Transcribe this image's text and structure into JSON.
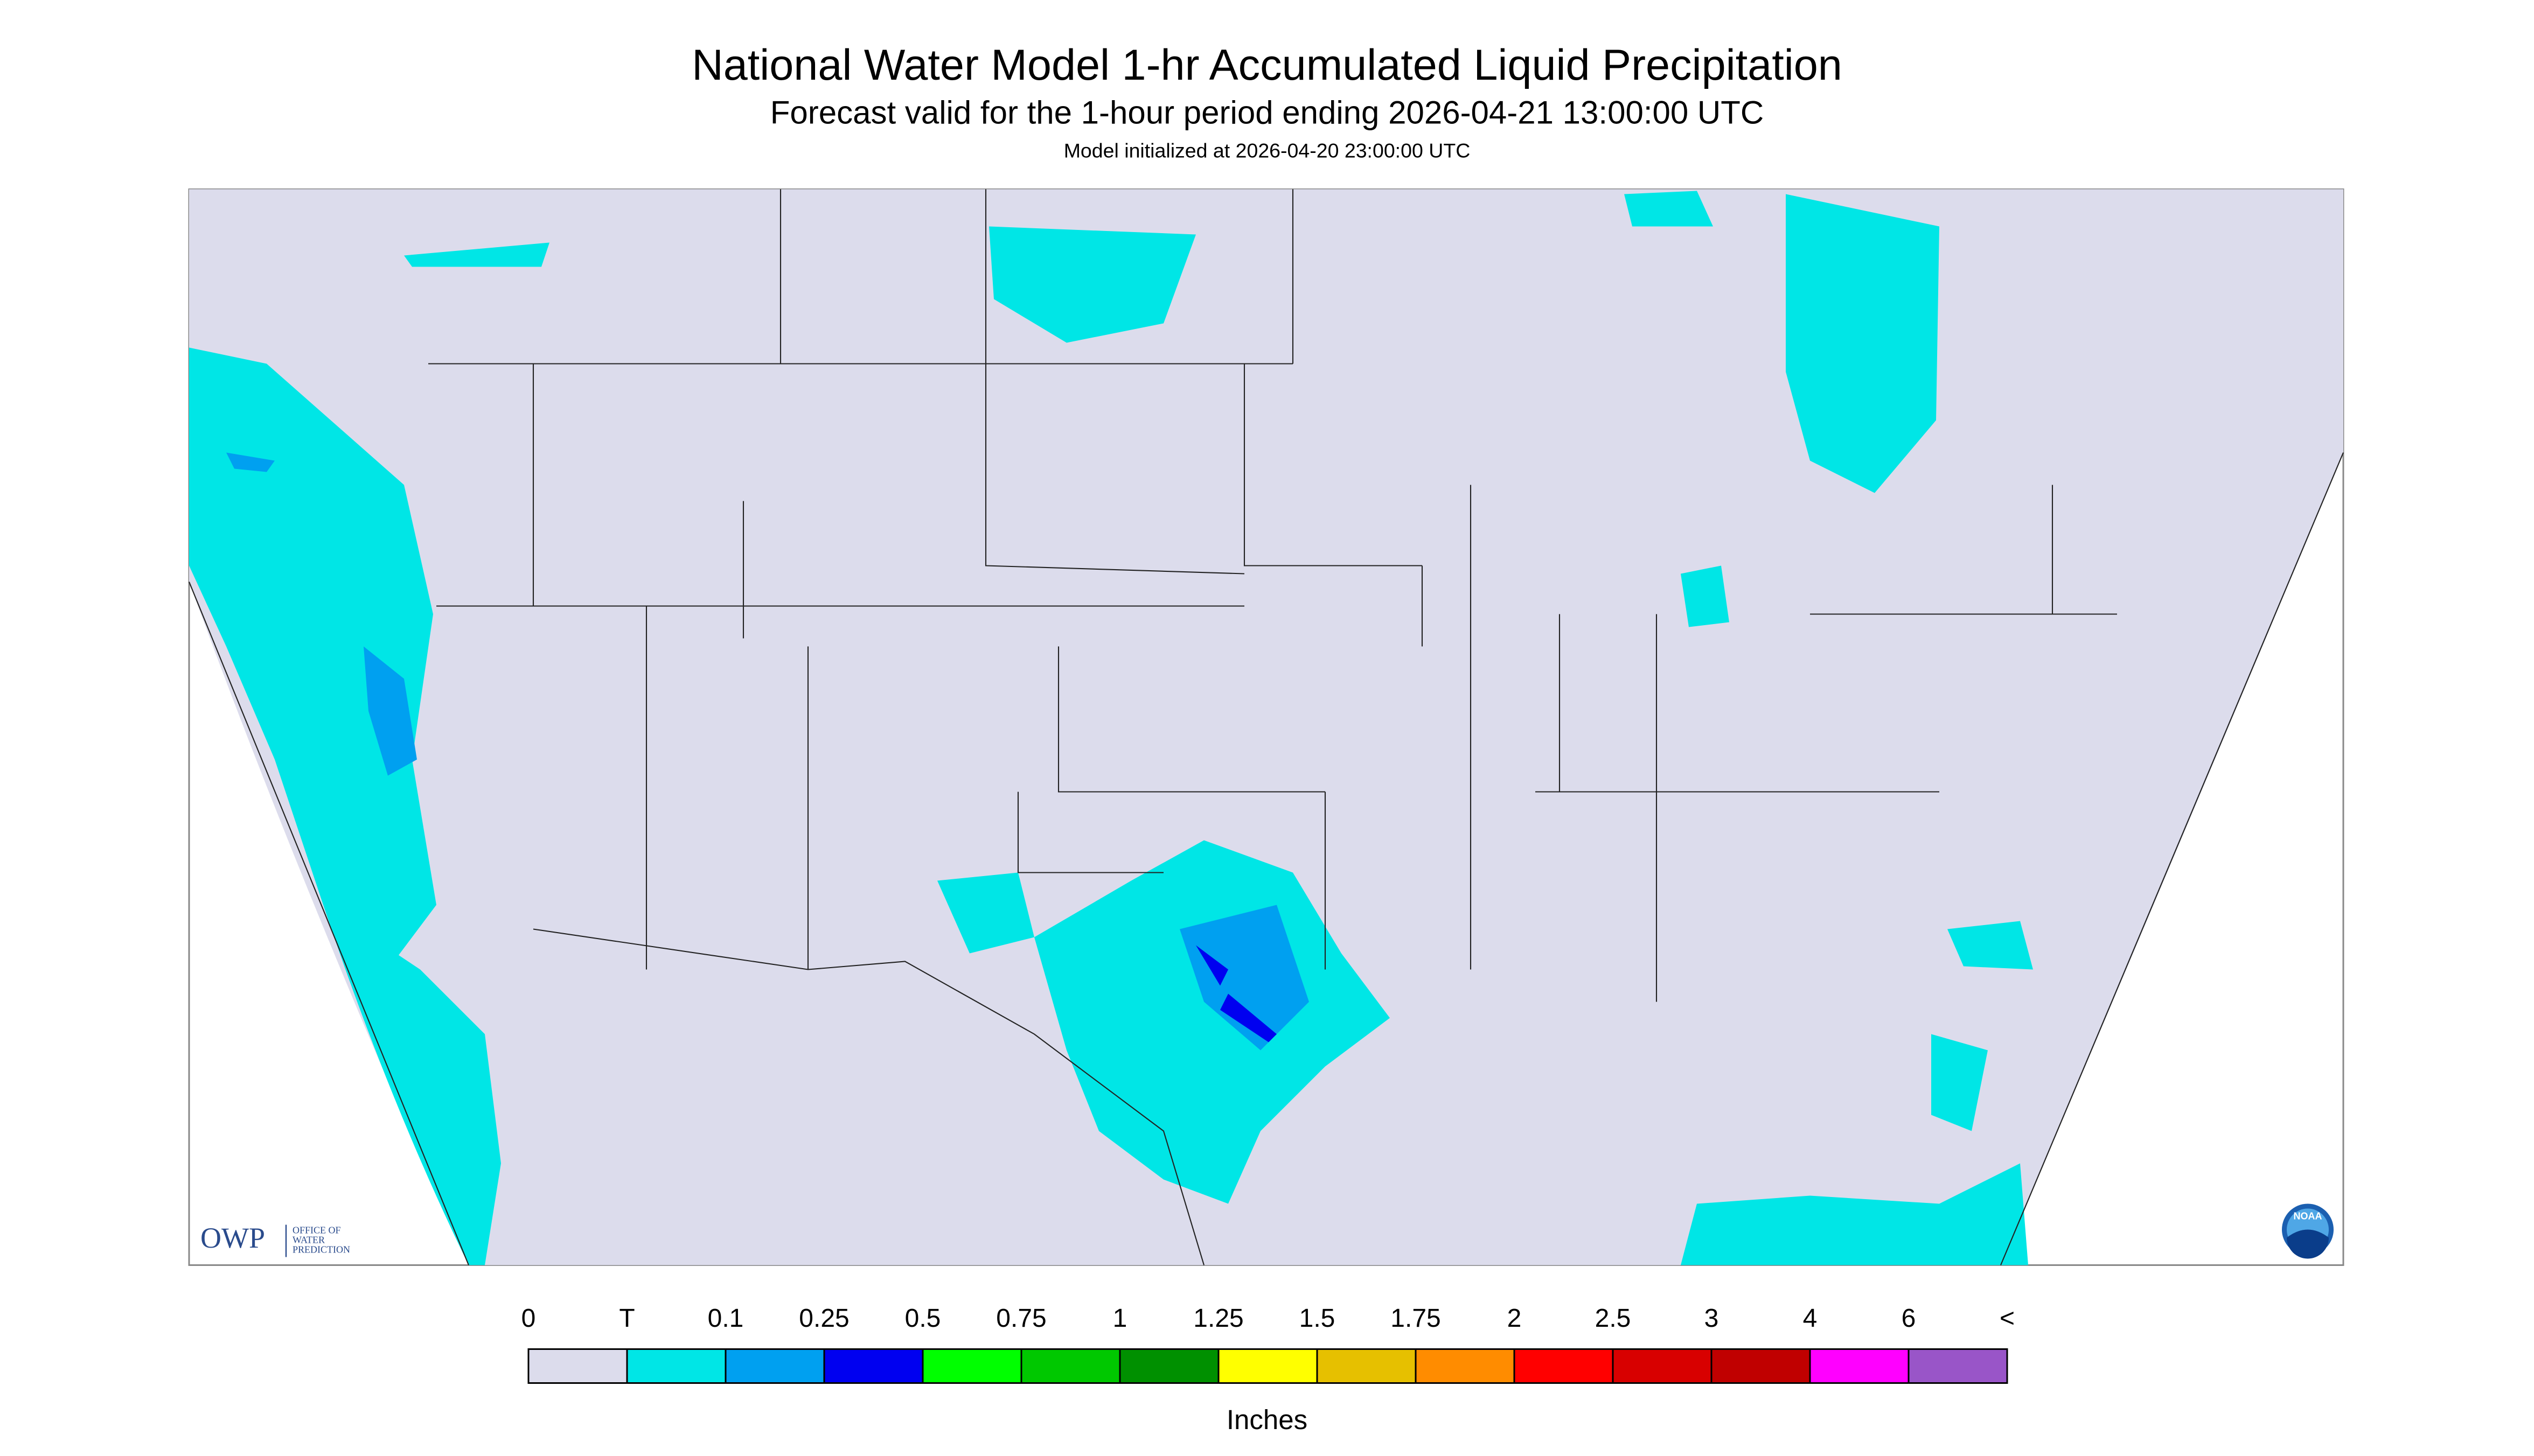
{
  "header": {
    "title": "National Water Model 1-hr Accumulated Liquid Precipitation",
    "subtitle": "Forecast valid for the 1-hour period ending 2026-04-21 13:00:00 UTC",
    "init": "Model initialized at 2026-04-20 23:00:00 UTC"
  },
  "logo": {
    "owp": "OWP",
    "office": [
      "OFFICE OF",
      "WATER",
      "PREDICTION"
    ],
    "noaa": "NOAA"
  },
  "legend": {
    "labels": [
      "0",
      "T",
      "0.1",
      "0.25",
      "0.5",
      "0.75",
      "1",
      "1.25",
      "1.5",
      "1.75",
      "2",
      "2.5",
      "3",
      "4",
      "6",
      "<"
    ],
    "colors": [
      "#dcdcec",
      "#00e6e6",
      "#00a0f0",
      "#0000f0",
      "#00ff00",
      "#00c800",
      "#009000",
      "#ffff00",
      "#e6c000",
      "#ff8c00",
      "#ff0000",
      "#d80000",
      "#c00000",
      "#ff00ff",
      "#9955c8"
    ],
    "unit": "Inches"
  }
}
